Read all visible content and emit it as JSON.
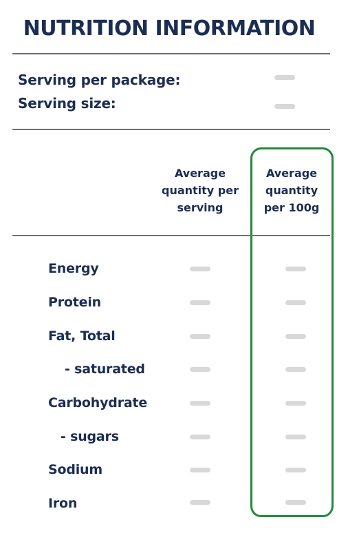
{
  "title": "NUTRITION INFORMATION",
  "serving": {
    "per_package_label": "Serving per package:",
    "size_label": "Serving size:"
  },
  "columns": {
    "per_serving": "Average quantity per serving",
    "per_100g": "Average quantity per 100g"
  },
  "nutrients": [
    {
      "label": "Energy"
    },
    {
      "label": "Protein"
    },
    {
      "label": "Fat, Total"
    },
    {
      "label": "- saturated"
    },
    {
      "label": "Carbohydrate"
    },
    {
      "label": "- sugars"
    },
    {
      "label": "Sodium"
    },
    {
      "label": "Iron"
    }
  ],
  "colors": {
    "text": "#1b2d52",
    "rule": "#6f6f6f",
    "placeholder_dash": "#d8d8d8",
    "highlight_border": "#1f8a3a"
  }
}
